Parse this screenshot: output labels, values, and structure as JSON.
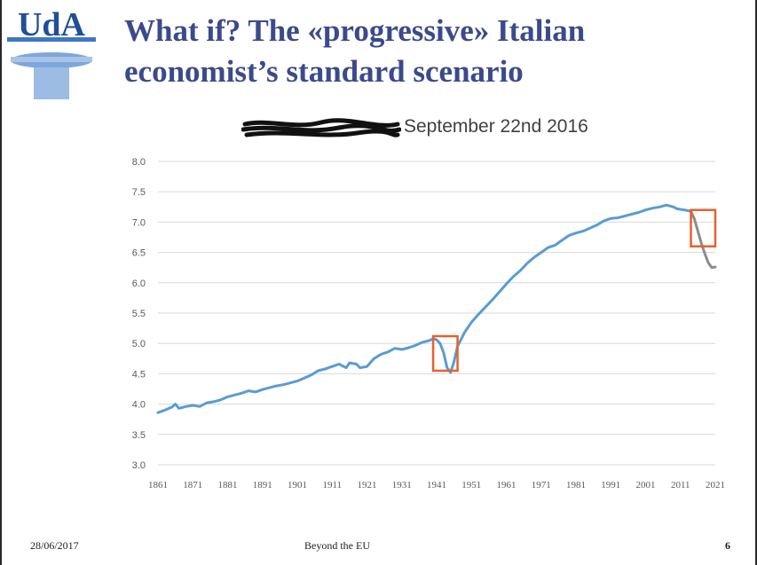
{
  "slide": {
    "logo_text": "UdA",
    "title_line1": "What if? The «progressive» Italian",
    "title_line2": "economist’s standard scenario"
  },
  "chart_data": {
    "type": "line",
    "title": "September 22nd 2016",
    "xlabel": "",
    "ylabel": "",
    "xlim": [
      1861,
      2021
    ],
    "ylim": [
      3.0,
      8.0
    ],
    "y_ticks": [
      "3.0",
      "3.5",
      "4.0",
      "4.5",
      "5.0",
      "5.5",
      "6.0",
      "6.5",
      "7.0",
      "7.5",
      "8.0"
    ],
    "x_ticks": [
      "1861",
      "1871",
      "1881",
      "1891",
      "1901",
      "1911",
      "1921",
      "1931",
      "1941",
      "1951",
      "1961",
      "1971",
      "1981",
      "1991",
      "2001",
      "2011",
      "2021"
    ],
    "grid": true,
    "series": [
      {
        "color": "#5b9bd5",
        "points": [
          [
            1861,
            3.86
          ],
          [
            1863,
            3.9
          ],
          [
            1865,
            3.95
          ],
          [
            1866,
            4.0
          ],
          [
            1867,
            3.93
          ],
          [
            1869,
            3.96
          ],
          [
            1871,
            3.98
          ],
          [
            1873,
            3.96
          ],
          [
            1875,
            4.02
          ],
          [
            1877,
            4.04
          ],
          [
            1879,
            4.07
          ],
          [
            1881,
            4.12
          ],
          [
            1883,
            4.15
          ],
          [
            1885,
            4.18
          ],
          [
            1887,
            4.22
          ],
          [
            1889,
            4.2
          ],
          [
            1891,
            4.24
          ],
          [
            1893,
            4.27
          ],
          [
            1895,
            4.3
          ],
          [
            1897,
            4.32
          ],
          [
            1899,
            4.35
          ],
          [
            1901,
            4.38
          ],
          [
            1903,
            4.43
          ],
          [
            1905,
            4.48
          ],
          [
            1907,
            4.55
          ],
          [
            1909,
            4.58
          ],
          [
            1911,
            4.62
          ],
          [
            1913,
            4.66
          ],
          [
            1915,
            4.6
          ],
          [
            1916,
            4.68
          ],
          [
            1918,
            4.66
          ],
          [
            1919,
            4.6
          ],
          [
            1921,
            4.62
          ],
          [
            1923,
            4.75
          ],
          [
            1925,
            4.82
          ],
          [
            1927,
            4.86
          ],
          [
            1929,
            4.92
          ],
          [
            1931,
            4.9
          ],
          [
            1933,
            4.93
          ],
          [
            1935,
            4.97
          ],
          [
            1937,
            5.02
          ],
          [
            1939,
            5.05
          ],
          [
            1940,
            5.08
          ],
          [
            1941,
            5.06
          ],
          [
            1942,
            5.0
          ],
          [
            1943,
            4.85
          ],
          [
            1944,
            4.6
          ],
          [
            1945,
            4.52
          ],
          [
            1946,
            4.7
          ],
          [
            1947,
            4.95
          ],
          [
            1949,
            5.18
          ],
          [
            1951,
            5.35
          ],
          [
            1953,
            5.48
          ],
          [
            1955,
            5.6
          ],
          [
            1957,
            5.72
          ],
          [
            1959,
            5.85
          ],
          [
            1961,
            5.98
          ],
          [
            1963,
            6.1
          ],
          [
            1965,
            6.2
          ],
          [
            1967,
            6.32
          ],
          [
            1969,
            6.42
          ],
          [
            1971,
            6.5
          ],
          [
            1973,
            6.58
          ],
          [
            1975,
            6.62
          ],
          [
            1977,
            6.7
          ],
          [
            1979,
            6.78
          ],
          [
            1981,
            6.82
          ],
          [
            1983,
            6.85
          ],
          [
            1985,
            6.9
          ],
          [
            1987,
            6.95
          ],
          [
            1989,
            7.02
          ],
          [
            1991,
            7.06
          ],
          [
            1993,
            7.07
          ],
          [
            1995,
            7.1
          ],
          [
            1997,
            7.13
          ],
          [
            1999,
            7.16
          ],
          [
            2001,
            7.2
          ],
          [
            2003,
            7.23
          ],
          [
            2005,
            7.25
          ],
          [
            2007,
            7.28
          ],
          [
            2009,
            7.25
          ],
          [
            2010,
            7.22
          ],
          [
            2012,
            7.2
          ],
          [
            2014,
            7.18
          ]
        ]
      },
      {
        "color": "#8c8c8c",
        "points": [
          [
            2014,
            7.18
          ],
          [
            2015,
            7.05
          ],
          [
            2016,
            6.85
          ],
          [
            2017,
            6.65
          ],
          [
            2018,
            6.48
          ],
          [
            2019,
            6.33
          ],
          [
            2020,
            6.25
          ],
          [
            2021,
            6.26
          ]
        ]
      }
    ],
    "highlight_boxes": [
      {
        "x": [
          1940,
          1947
        ],
        "y": [
          4.55,
          5.12
        ],
        "color": "#e8602c"
      },
      {
        "x": [
          2014,
          2021
        ],
        "y": [
          6.6,
          7.2
        ],
        "color": "#e8602c"
      }
    ]
  },
  "footer": {
    "date": "28/06/2017",
    "center": "Beyond the EU",
    "page": "6"
  }
}
